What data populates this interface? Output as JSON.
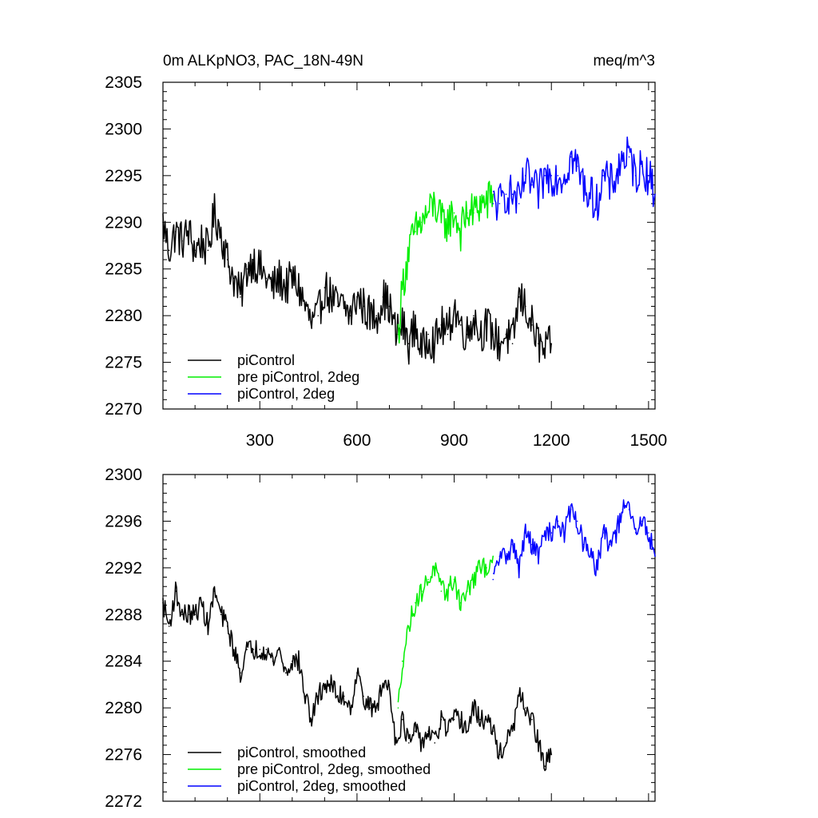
{
  "chart_data": [
    {
      "type": "line",
      "title": "0m ALKpNO3, PAC_18N-49N",
      "units": "meq/m^3",
      "xlim": [
        1,
        1520
      ],
      "ylim": [
        2270,
        2305
      ],
      "xticks": [
        300,
        600,
        900,
        1200,
        1500
      ],
      "yticks": [
        2270,
        2275,
        2280,
        2285,
        2290,
        2295,
        2300,
        2305
      ],
      "grid": false,
      "legend_position": "bottom-left",
      "series": [
        {
          "name": "piControl",
          "color": "#000000",
          "x": [
            1,
            20,
            40,
            60,
            80,
            100,
            120,
            140,
            160,
            180,
            200,
            220,
            240,
            260,
            280,
            300,
            320,
            340,
            360,
            380,
            400,
            420,
            440,
            460,
            480,
            500,
            520,
            540,
            560,
            580,
            600,
            620,
            640,
            660,
            680,
            700,
            720,
            740,
            760,
            780,
            800,
            820,
            840,
            860,
            880,
            900,
            920,
            940,
            960,
            980,
            1000,
            1020,
            1040,
            1060,
            1080,
            1100,
            1120,
            1140,
            1160,
            1180,
            1200
          ],
          "y": [
            2290,
            2287,
            2289,
            2288,
            2289,
            2287,
            2288,
            2287,
            2291,
            2289,
            2286,
            2284,
            2282,
            2285,
            2286,
            2285,
            2284,
            2283,
            2284,
            2283,
            2284,
            2283,
            2281,
            2279,
            2280,
            2283,
            2282,
            2281,
            2281,
            2280,
            2282,
            2281,
            2280,
            2280,
            2282,
            2281,
            2278,
            2279,
            2277,
            2279,
            2276,
            2278,
            2277,
            2279,
            2278,
            2281,
            2279,
            2278,
            2280,
            2278,
            2279,
            2278,
            2277,
            2278,
            2277,
            2282,
            2281,
            2279,
            2277,
            2276,
            2277
          ]
        },
        {
          "name": "pre piControl, 2deg",
          "color": "#00ee00",
          "x": [
            727,
            740,
            760,
            780,
            800,
            820,
            840,
            860,
            880,
            900,
            920,
            940,
            960,
            980,
            1000,
            1020
          ],
          "y": [
            2278,
            2283,
            2287,
            2289,
            2290,
            2291,
            2292,
            2290,
            2290,
            2291,
            2289,
            2291,
            2291,
            2292,
            2292,
            2293
          ]
        },
        {
          "name": "piControl, 2deg",
          "color": "#0000ff",
          "x": [
            1020,
            1040,
            1060,
            1080,
            1100,
            1120,
            1140,
            1160,
            1180,
            1200,
            1220,
            1240,
            1260,
            1280,
            1300,
            1320,
            1340,
            1360,
            1380,
            1400,
            1420,
            1440,
            1460,
            1480,
            1500,
            1520
          ],
          "y": [
            2292,
            2292,
            2293,
            2293,
            2292,
            2295,
            2294,
            2293,
            2295,
            2295,
            2295,
            2295,
            2297,
            2296,
            2294,
            2293,
            2292,
            2295,
            2294,
            2295,
            2297,
            2297,
            2295,
            2296,
            2295,
            2293
          ]
        }
      ]
    },
    {
      "type": "line",
      "xlim": [
        1,
        1520
      ],
      "ylim": [
        2272,
        2300
      ],
      "xticks": [
        300,
        600,
        900,
        1200,
        1500
      ],
      "yticks": [
        2272,
        2276,
        2280,
        2284,
        2288,
        2292,
        2296,
        2300
      ],
      "grid": false,
      "legend_position": "bottom-left",
      "series": [
        {
          "name": "piControl, smoothed",
          "color": "#000000",
          "x": [
            1,
            20,
            40,
            60,
            80,
            100,
            120,
            140,
            160,
            180,
            200,
            220,
            240,
            260,
            280,
            300,
            320,
            340,
            360,
            380,
            400,
            420,
            440,
            460,
            480,
            500,
            520,
            540,
            560,
            580,
            600,
            620,
            640,
            660,
            680,
            700,
            720,
            740,
            760,
            780,
            800,
            820,
            840,
            860,
            880,
            900,
            920,
            940,
            960,
            980,
            1000,
            1020,
            1040,
            1060,
            1080,
            1100,
            1120,
            1140,
            1160,
            1180,
            1200
          ],
          "y": [
            2289,
            2287,
            2290,
            2288,
            2288,
            2288,
            2289,
            2287,
            2290,
            2288,
            2287,
            2285,
            2283,
            2285,
            2285,
            2285,
            2285,
            2284,
            2285,
            2283,
            2284,
            2284,
            2281,
            2279,
            2281,
            2282,
            2282,
            2281,
            2281,
            2280,
            2283,
            2281,
            2280,
            2280,
            2282,
            2282,
            2277,
            2279,
            2277,
            2278,
            2277,
            2278,
            2277,
            2279,
            2278,
            2279,
            2279,
            2278,
            2280,
            2279,
            2279,
            2278,
            2276,
            2277,
            2278,
            2281,
            2280,
            2279,
            2277,
            2275,
            2276
          ]
        },
        {
          "name": "pre piControl, 2deg, smoothed",
          "color": "#00ee00",
          "x": [
            727,
            740,
            760,
            780,
            800,
            820,
            840,
            860,
            880,
            900,
            920,
            940,
            960,
            980,
            1000,
            1020
          ],
          "y": [
            2280,
            2284,
            2287,
            2289,
            2290,
            2291,
            2292,
            2290,
            2290,
            2291,
            2289,
            2290,
            2291,
            2292,
            2292,
            2293
          ]
        },
        {
          "name": "piControl, 2deg, smoothed",
          "color": "#0000ff",
          "x": [
            1020,
            1040,
            1060,
            1080,
            1100,
            1120,
            1140,
            1160,
            1180,
            1200,
            1220,
            1240,
            1260,
            1280,
            1300,
            1320,
            1340,
            1360,
            1380,
            1400,
            1420,
            1440,
            1460,
            1480,
            1500,
            1520
          ],
          "y": [
            2291,
            2293,
            2293,
            2294,
            2292,
            2295,
            2294,
            2293,
            2295,
            2295,
            2296,
            2295,
            2297,
            2296,
            2294,
            2293,
            2292,
            2295,
            2294,
            2295,
            2297,
            2297,
            2295,
            2296,
            2295,
            2293
          ]
        }
      ]
    }
  ]
}
